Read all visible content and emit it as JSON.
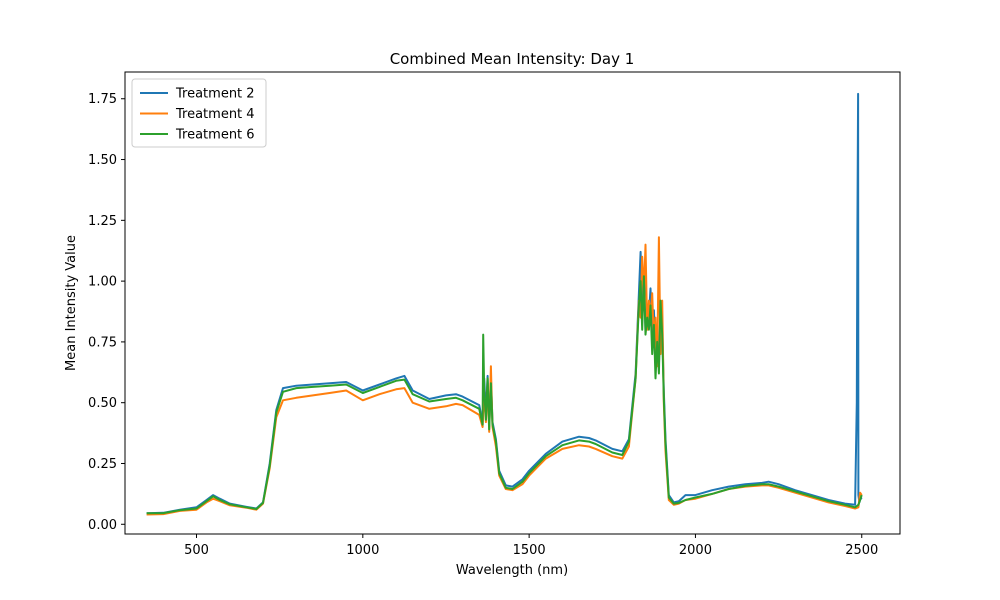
{
  "chart_data": {
    "type": "line",
    "title": "Combined Mean Intensity: Day 1",
    "xlabel": "Wavelength (nm)",
    "ylabel": "Mean Intensity Value",
    "xlim": [
      285,
      2615
    ],
    "ylim": [
      -0.04,
      1.86
    ],
    "xticks": [
      500,
      1000,
      1500,
      2000,
      2500
    ],
    "xtick_labels": [
      "500",
      "1000",
      "1500",
      "2000",
      "2500"
    ],
    "yticks": [
      0.0,
      0.25,
      0.5,
      0.75,
      1.0,
      1.25,
      1.5,
      1.75
    ],
    "ytick_labels": [
      "0.00",
      "0.25",
      "0.50",
      "0.75",
      "1.00",
      "1.25",
      "1.50",
      "1.75"
    ],
    "grid": false,
    "legend_position": "top-left",
    "series": [
      {
        "name": "Treatment 2",
        "color": "#1f77b4",
        "x": [
          350,
          400,
          450,
          500,
          530,
          550,
          570,
          600,
          650,
          680,
          700,
          720,
          740,
          760,
          800,
          850,
          900,
          950,
          1000,
          1050,
          1100,
          1125,
          1150,
          1200,
          1250,
          1280,
          1300,
          1350,
          1360,
          1365,
          1370,
          1375,
          1380,
          1385,
          1390,
          1400,
          1410,
          1430,
          1450,
          1480,
          1500,
          1550,
          1600,
          1650,
          1680,
          1700,
          1750,
          1780,
          1800,
          1820,
          1830,
          1835,
          1840,
          1845,
          1850,
          1855,
          1860,
          1865,
          1870,
          1875,
          1880,
          1885,
          1890,
          1895,
          1900,
          1905,
          1910,
          1920,
          1935,
          1950,
          1970,
          2000,
          2050,
          2100,
          2150,
          2200,
          2220,
          2250,
          2300,
          2350,
          2400,
          2450,
          2480,
          2485,
          2487,
          2489,
          2490,
          2493,
          2495,
          2500
        ],
        "y": [
          0.045,
          0.047,
          0.06,
          0.07,
          0.1,
          0.12,
          0.105,
          0.085,
          0.072,
          0.065,
          0.09,
          0.25,
          0.47,
          0.56,
          0.57,
          0.575,
          0.58,
          0.585,
          0.55,
          0.575,
          0.6,
          0.61,
          0.55,
          0.515,
          0.53,
          0.535,
          0.525,
          0.49,
          0.42,
          0.6,
          0.45,
          0.61,
          0.4,
          0.6,
          0.42,
          0.35,
          0.22,
          0.16,
          0.155,
          0.185,
          0.22,
          0.29,
          0.34,
          0.36,
          0.355,
          0.345,
          0.31,
          0.3,
          0.35,
          0.62,
          0.95,
          1.12,
          0.85,
          1.05,
          0.8,
          0.9,
          0.85,
          0.97,
          0.75,
          0.88,
          0.7,
          0.78,
          0.65,
          0.9,
          0.82,
          0.55,
          0.35,
          0.12,
          0.09,
          0.095,
          0.12,
          0.12,
          0.14,
          0.155,
          0.165,
          0.17,
          0.175,
          0.165,
          0.14,
          0.12,
          0.1,
          0.085,
          0.08,
          0.5,
          1.2,
          1.77,
          0.12,
          0.09,
          0.1,
          0.11
        ]
      },
      {
        "name": "Treatment 4",
        "color": "#ff7f0e",
        "x": [
          350,
          400,
          450,
          500,
          530,
          550,
          570,
          600,
          650,
          680,
          700,
          720,
          740,
          760,
          800,
          850,
          900,
          950,
          1000,
          1050,
          1100,
          1125,
          1150,
          1200,
          1250,
          1280,
          1300,
          1350,
          1360,
          1365,
          1370,
          1375,
          1380,
          1385,
          1390,
          1400,
          1410,
          1430,
          1450,
          1480,
          1500,
          1550,
          1600,
          1650,
          1680,
          1700,
          1750,
          1780,
          1800,
          1820,
          1830,
          1835,
          1840,
          1845,
          1850,
          1855,
          1860,
          1865,
          1870,
          1875,
          1880,
          1885,
          1890,
          1895,
          1900,
          1905,
          1910,
          1920,
          1935,
          1950,
          1970,
          2000,
          2050,
          2100,
          2150,
          2200,
          2220,
          2250,
          2300,
          2350,
          2400,
          2450,
          2480,
          2490,
          2495,
          2500
        ],
        "y": [
          0.04,
          0.042,
          0.055,
          0.06,
          0.09,
          0.105,
          0.095,
          0.078,
          0.068,
          0.06,
          0.085,
          0.23,
          0.44,
          0.51,
          0.52,
          0.53,
          0.54,
          0.55,
          0.51,
          0.535,
          0.555,
          0.56,
          0.5,
          0.475,
          0.485,
          0.495,
          0.49,
          0.45,
          0.4,
          0.55,
          0.42,
          0.58,
          0.38,
          0.65,
          0.4,
          0.32,
          0.2,
          0.145,
          0.14,
          0.165,
          0.2,
          0.27,
          0.31,
          0.325,
          0.32,
          0.31,
          0.28,
          0.27,
          0.32,
          0.6,
          0.92,
          0.85,
          1.1,
          0.95,
          1.15,
          0.8,
          0.92,
          0.85,
          0.95,
          0.75,
          0.85,
          0.65,
          1.18,
          0.7,
          0.92,
          0.5,
          0.3,
          0.1,
          0.08,
          0.085,
          0.1,
          0.105,
          0.125,
          0.145,
          0.155,
          0.16,
          0.16,
          0.15,
          0.13,
          0.11,
          0.09,
          0.075,
          0.065,
          0.07,
          0.13,
          0.12
        ]
      },
      {
        "name": "Treatment 6",
        "color": "#2ca02c",
        "x": [
          350,
          400,
          450,
          500,
          530,
          550,
          570,
          600,
          650,
          680,
          700,
          720,
          740,
          760,
          800,
          850,
          900,
          950,
          1000,
          1050,
          1100,
          1125,
          1150,
          1200,
          1250,
          1280,
          1300,
          1350,
          1360,
          1362,
          1365,
          1370,
          1375,
          1380,
          1385,
          1390,
          1400,
          1410,
          1430,
          1450,
          1480,
          1500,
          1550,
          1600,
          1650,
          1680,
          1700,
          1750,
          1780,
          1800,
          1820,
          1830,
          1835,
          1840,
          1845,
          1850,
          1855,
          1860,
          1865,
          1870,
          1875,
          1880,
          1885,
          1890,
          1895,
          1900,
          1905,
          1910,
          1920,
          1935,
          1950,
          1970,
          2000,
          2050,
          2100,
          2150,
          2200,
          2220,
          2250,
          2300,
          2350,
          2400,
          2450,
          2480,
          2490,
          2495,
          2500
        ],
        "y": [
          0.045,
          0.046,
          0.058,
          0.065,
          0.095,
          0.115,
          0.1,
          0.082,
          0.07,
          0.063,
          0.088,
          0.24,
          0.46,
          0.545,
          0.56,
          0.565,
          0.57,
          0.575,
          0.54,
          0.565,
          0.59,
          0.595,
          0.535,
          0.505,
          0.515,
          0.52,
          0.51,
          0.475,
          0.41,
          0.78,
          0.55,
          0.43,
          0.6,
          0.39,
          0.58,
          0.41,
          0.34,
          0.21,
          0.15,
          0.145,
          0.175,
          0.21,
          0.28,
          0.325,
          0.345,
          0.34,
          0.33,
          0.295,
          0.285,
          0.34,
          0.6,
          0.9,
          1.0,
          0.8,
          1.02,
          0.78,
          0.85,
          0.8,
          0.9,
          0.7,
          0.82,
          0.6,
          0.75,
          0.62,
          0.92,
          0.78,
          0.52,
          0.33,
          0.11,
          0.085,
          0.088,
          0.1,
          0.11,
          0.125,
          0.145,
          0.158,
          0.165,
          0.165,
          0.155,
          0.135,
          0.115,
          0.095,
          0.08,
          0.07,
          0.08,
          0.1,
          0.12
        ]
      }
    ]
  }
}
